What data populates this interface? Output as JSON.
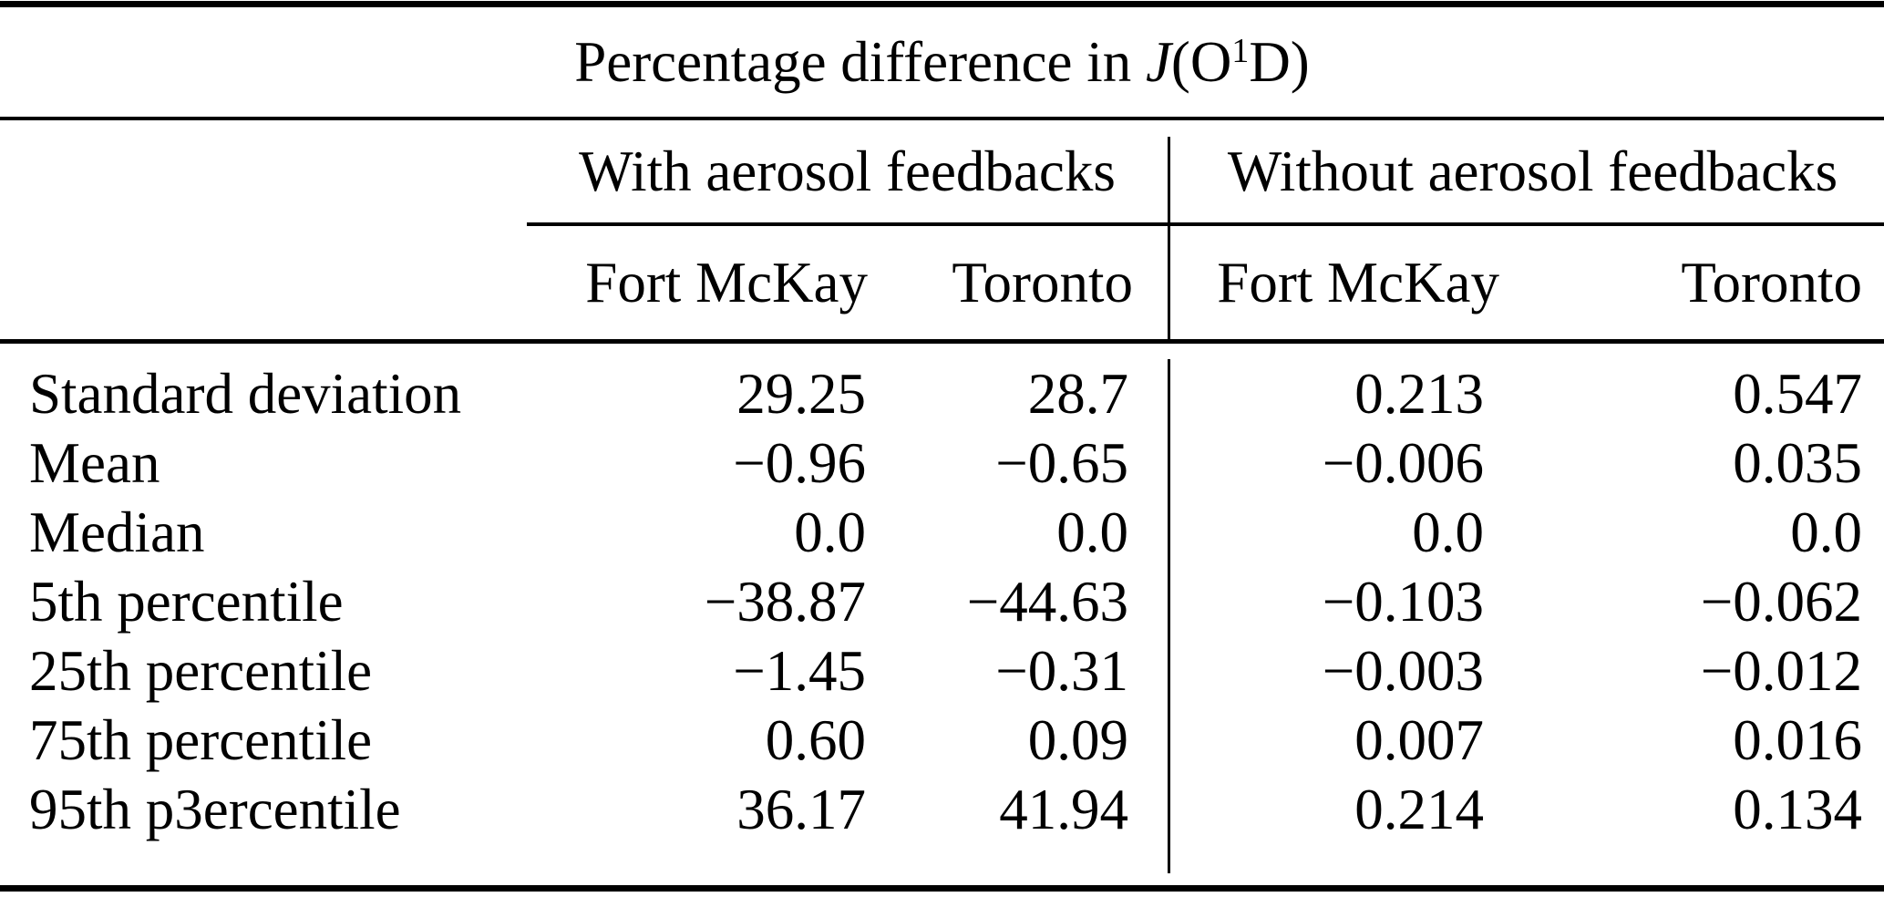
{
  "colors": {
    "text": "#000000",
    "background": "#ffffff",
    "rule": "#000000"
  },
  "title": {
    "text": "Percentage difference in",
    "j_symbol": "J",
    "o_part": "(O",
    "superscript": "1",
    "d_part": "D)"
  },
  "table": {
    "column_groups": [
      {
        "label": "With aerosol feedbacks",
        "columns": [
          "Fort McKay",
          "Toronto"
        ]
      },
      {
        "label": "Without aerosol feedbacks",
        "columns": [
          "Fort McKay",
          "Toronto"
        ]
      }
    ],
    "rows": [
      {
        "label": "Standard deviation",
        "values": [
          "29.25",
          "28.7",
          "0.213",
          "0.547"
        ]
      },
      {
        "label": "Mean",
        "values": [
          "−0.96",
          "−0.65",
          "−0.006",
          "0.035"
        ]
      },
      {
        "label": "Median",
        "values": [
          "0.0",
          "0.0",
          "0.0",
          "0.0"
        ]
      },
      {
        "label": "5th percentile",
        "values": [
          "−38.87",
          "−44.63",
          "−0.103",
          "−0.062"
        ]
      },
      {
        "label": "25th percentile",
        "values": [
          "−1.45",
          "−0.31",
          "−0.003",
          "−0.012"
        ]
      },
      {
        "label": "75th percentile",
        "values": [
          "0.60",
          "0.09",
          "0.007",
          "0.016"
        ]
      },
      {
        "label": "95th p3ercentile",
        "values": [
          "36.17",
          "41.94",
          "0.214",
          "0.134"
        ]
      }
    ]
  }
}
